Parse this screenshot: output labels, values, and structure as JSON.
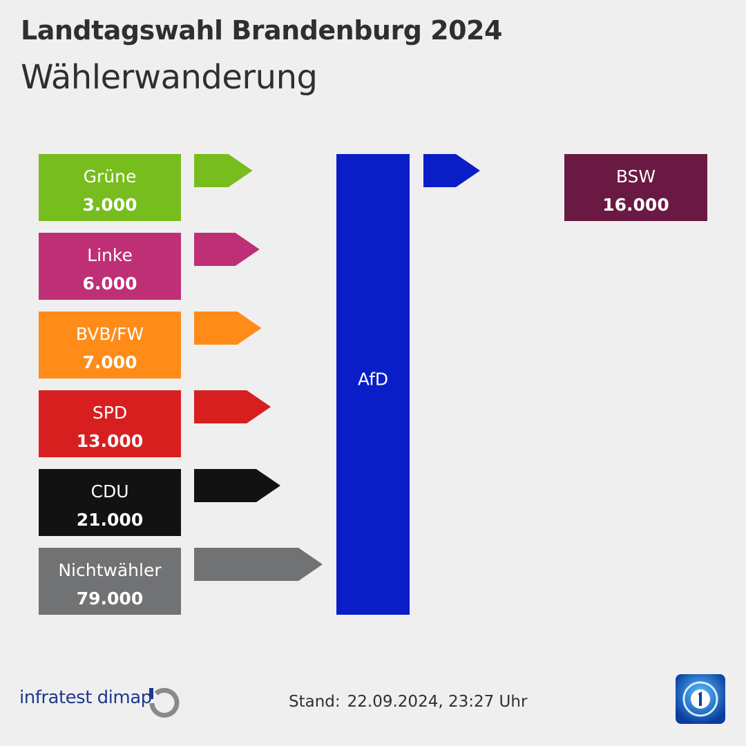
{
  "header": {
    "title": "Landtagswahl Brandenburg 2024",
    "subtitle": "Wählerwanderung"
  },
  "chart_data": {
    "type": "flow",
    "target": {
      "label": "AfD",
      "color": "#0a1ec8"
    },
    "inflows": [
      {
        "label": "Grüne",
        "value": 3000,
        "value_label": "3.000",
        "color": "#78bd1e"
      },
      {
        "label": "Linke",
        "value": 6000,
        "value_label": "6.000",
        "color": "#bf2f76"
      },
      {
        "label": "BVB/FW",
        "value": 7000,
        "value_label": "7.000",
        "color": "#ff8c19"
      },
      {
        "label": "SPD",
        "value": 13000,
        "value_label": "13.000",
        "color": "#d81f1f"
      },
      {
        "label": "CDU",
        "value": 21000,
        "value_label": "21.000",
        "color": "#121212"
      },
      {
        "label": "Nichtwähler",
        "value": 79000,
        "value_label": "79.000",
        "color": "#717274"
      }
    ],
    "outflows": [
      {
        "label": "BSW",
        "value": 16000,
        "value_label": "16.000",
        "color": "#6a1a42",
        "arrow_color": "#0a1ec8"
      }
    ]
  },
  "footer": {
    "brand": "infratest dimap",
    "stand_label": "Stand:",
    "stand_date": "22.09.2024, 23:27 Uhr"
  }
}
